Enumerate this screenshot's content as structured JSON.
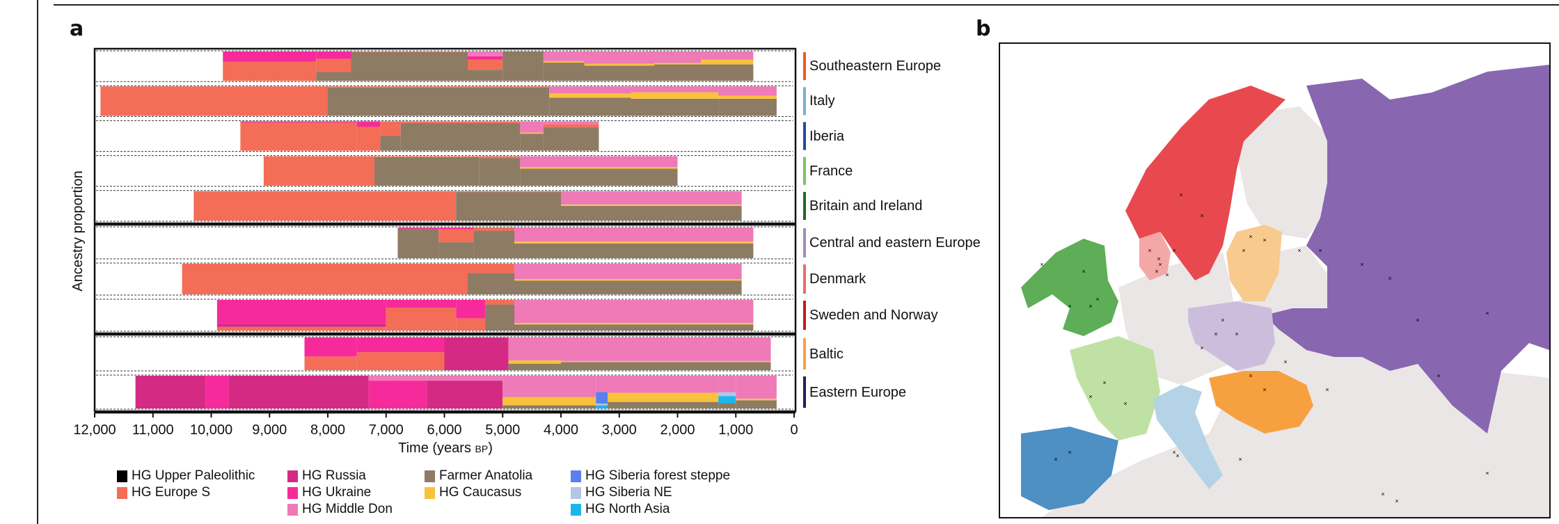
{
  "panels": {
    "a_label": "a",
    "b_label": "b"
  },
  "chart_data": [
    {
      "type": "area",
      "title": "",
      "xlabel": "Time (years BP)",
      "xlabel_main": "Time (years ",
      "xlabel_sc": "BP",
      "xlabel_close": ")",
      "ylabel": "Ancestry proportion",
      "xlim": [
        12000,
        0
      ],
      "ylim": [
        0,
        1
      ],
      "x_ticks": [
        12000,
        11000,
        10000,
        9000,
        8000,
        7000,
        6000,
        5000,
        4000,
        3000,
        2000,
        1000,
        0
      ],
      "x_tick_labels": [
        "12,000",
        "11,000",
        "10,000",
        "9,000",
        "8,000",
        "7,000",
        "6,000",
        "5,000",
        "4,000",
        "3,000",
        "2,000",
        "1,000",
        "0"
      ],
      "grid": false,
      "legend_position": "bottom",
      "components": [
        {
          "name": "HG Upper Paleolithic",
          "color": "#000000"
        },
        {
          "name": "HG Europe S",
          "color": "#F46D56"
        },
        {
          "name": "HG Russia",
          "color": "#D42A84"
        },
        {
          "name": "HG Ukraine",
          "color": "#F72A9C"
        },
        {
          "name": "HG Middle Don",
          "color": "#EE7AB8"
        },
        {
          "name": "Farmer Anatolia",
          "color": "#8E7B63"
        },
        {
          "name": "HG Caucasus",
          "color": "#F9C23C"
        },
        {
          "name": "HG Siberia forest steppe",
          "color": "#5B7FF0"
        },
        {
          "name": "HG Siberia NE",
          "color": "#B3C6E4"
        },
        {
          "name": "HG North Asia",
          "color": "#1DB6EC"
        }
      ],
      "groups": [
        {
          "regions": [
            {
              "name": "Southeastern Europe",
              "color": "#F25A1C",
              "segments": [
                {
                  "from": 9800,
                  "to": 8200,
                  "p": {
                    "HG Europe S": 0.65,
                    "HG Ukraine": 0.35
                  }
                },
                {
                  "from": 8200,
                  "to": 7600,
                  "p": {
                    "HG Europe S": 0.45,
                    "Farmer Anatolia": 0.3,
                    "HG Ukraine": 0.25
                  }
                },
                {
                  "from": 7600,
                  "to": 5600,
                  "p": {
                    "Farmer Anatolia": 0.98,
                    "HG Europe S": 0.02
                  }
                },
                {
                  "from": 5600,
                  "to": 5000,
                  "p": {
                    "Farmer Anatolia": 0.38,
                    "HG Europe S": 0.34,
                    "HG Ukraine": 0.12,
                    "HG Middle Don": 0.16
                  }
                },
                {
                  "from": 5000,
                  "to": 4300,
                  "p": {
                    "Farmer Anatolia": 1.0
                  }
                },
                {
                  "from": 4300,
                  "to": 3600,
                  "p": {
                    "Farmer Anatolia": 0.62,
                    "HG Caucasus": 0.05,
                    "HG Middle Don": 0.33
                  }
                },
                {
                  "from": 3600,
                  "to": 2400,
                  "p": {
                    "Farmer Anatolia": 0.52,
                    "HG Caucasus": 0.06,
                    "HG Middle Don": 0.42
                  }
                },
                {
                  "from": 2400,
                  "to": 1600,
                  "p": {
                    "Farmer Anatolia": 0.56,
                    "HG Caucasus": 0.05,
                    "HG Middle Don": 0.39
                  }
                },
                {
                  "from": 1600,
                  "to": 700,
                  "p": {
                    "Farmer Anatolia": 0.56,
                    "HG Caucasus": 0.16,
                    "HG Middle Don": 0.28
                  }
                }
              ]
            },
            {
              "name": "Italy",
              "color": "#7BAFD4",
              "segments": [
                {
                  "from": 11900,
                  "to": 8000,
                  "p": {
                    "HG Europe S": 1.0
                  }
                },
                {
                  "from": 8000,
                  "to": 4200,
                  "p": {
                    "Farmer Anatolia": 0.96,
                    "HG Europe S": 0.04
                  }
                },
                {
                  "from": 4200,
                  "to": 2800,
                  "p": {
                    "Farmer Anatolia": 0.62,
                    "HG Caucasus": 0.14,
                    "HG Middle Don": 0.24
                  }
                },
                {
                  "from": 2800,
                  "to": 1300,
                  "p": {
                    "Farmer Anatolia": 0.58,
                    "HG Caucasus": 0.22,
                    "HG Middle Don": 0.2
                  }
                },
                {
                  "from": 1300,
                  "to": 300,
                  "p": {
                    "Farmer Anatolia": 0.58,
                    "HG Caucasus": 0.1,
                    "HG Middle Don": 0.32
                  }
                }
              ]
            },
            {
              "name": "Iberia",
              "color": "#1F4E9A",
              "segments": [
                {
                  "from": 9500,
                  "to": 7500,
                  "p": {
                    "HG Europe S": 0.96,
                    "HG Ukraine": 0.04
                  }
                },
                {
                  "from": 7500,
                  "to": 7100,
                  "p": {
                    "HG Europe S": 0.82,
                    "HG Ukraine": 0.18
                  }
                },
                {
                  "from": 7100,
                  "to": 6750,
                  "p": {
                    "HG Europe S": 0.5,
                    "Farmer Anatolia": 0.5
                  }
                },
                {
                  "from": 6750,
                  "to": 4700,
                  "p": {
                    "Farmer Anatolia": 0.94,
                    "HG Europe S": 0.06
                  }
                },
                {
                  "from": 4700,
                  "to": 4300,
                  "p": {
                    "Farmer Anatolia": 0.58,
                    "HG Caucasus": 0.04,
                    "HG Middle Don": 0.38
                  }
                },
                {
                  "from": 4300,
                  "to": 3350,
                  "p": {
                    "Farmer Anatolia": 0.8,
                    "HG Europe S": 0.1,
                    "HG Middle Don": 0.1
                  }
                }
              ]
            },
            {
              "name": "France",
              "color": "#7CC462",
              "segments": [
                {
                  "from": 9100,
                  "to": 7200,
                  "p": {
                    "HG Europe S": 1.0
                  }
                },
                {
                  "from": 7200,
                  "to": 5400,
                  "p": {
                    "Farmer Anatolia": 0.97,
                    "HG Europe S": 0.03
                  }
                },
                {
                  "from": 5400,
                  "to": 4700,
                  "p": {
                    "Farmer Anatolia": 0.94,
                    "HG Europe S": 0.06
                  }
                },
                {
                  "from": 4700,
                  "to": 2000,
                  "p": {
                    "Farmer Anatolia": 0.58,
                    "HG Caucasus": 0.05,
                    "HG Middle Don": 0.37
                  }
                }
              ]
            },
            {
              "name": "Britain and Ireland",
              "color": "#1E6B23",
              "segments": [
                {
                  "from": 10300,
                  "to": 5800,
                  "p": {
                    "HG Europe S": 1.0
                  }
                },
                {
                  "from": 5800,
                  "to": 4000,
                  "p": {
                    "Farmer Anatolia": 0.97,
                    "HG Europe S": 0.03
                  }
                },
                {
                  "from": 4000,
                  "to": 900,
                  "p": {
                    "Farmer Anatolia": 0.5,
                    "HG Caucasus": 0.05,
                    "HG Middle Don": 0.45
                  }
                }
              ]
            }
          ]
        },
        {
          "regions": [
            {
              "name": "Central and eastern Europe",
              "color": "#A08BC0",
              "segments": [
                {
                  "from": 6800,
                  "to": 6100,
                  "p": {
                    "Farmer Anatolia": 0.96,
                    "HG Ukraine": 0.04
                  }
                },
                {
                  "from": 6100,
                  "to": 5500,
                  "p": {
                    "Farmer Anatolia": 0.52,
                    "HG Europe S": 0.43,
                    "HG Ukraine": 0.05
                  }
                },
                {
                  "from": 5500,
                  "to": 4800,
                  "p": {
                    "Farmer Anatolia": 0.9,
                    "HG Europe S": 0.1
                  }
                },
                {
                  "from": 4800,
                  "to": 700,
                  "p": {
                    "Farmer Anatolia": 0.48,
                    "HG Caucasus": 0.06,
                    "HG Middle Don": 0.46
                  }
                }
              ]
            },
            {
              "name": "Denmark",
              "color": "#EE6B6B",
              "segments": [
                {
                  "from": 10500,
                  "to": 5600,
                  "p": {
                    "HG Europe S": 1.0
                  }
                },
                {
                  "from": 5600,
                  "to": 4800,
                  "p": {
                    "Farmer Anatolia": 0.7,
                    "HG Europe S": 0.3
                  }
                },
                {
                  "from": 4800,
                  "to": 900,
                  "p": {
                    "Farmer Anatolia": 0.45,
                    "HG Caucasus": 0.05,
                    "HG Middle Don": 0.5
                  }
                }
              ]
            },
            {
              "name": "Sweden and Norway",
              "color": "#C41A1A",
              "segments": [
                {
                  "from": 9900,
                  "to": 7000,
                  "p": {
                    "HG Europe S": 0.12,
                    "HG Ukraine": 0.78,
                    "HG Russia": 0.1
                  }
                },
                {
                  "from": 7000,
                  "to": 5800,
                  "p": {
                    "HG Europe S": 0.75,
                    "HG Ukraine": 0.25
                  }
                },
                {
                  "from": 5800,
                  "to": 5300,
                  "p": {
                    "HG Europe S": 0.4,
                    "HG Ukraine": 0.6
                  }
                },
                {
                  "from": 5300,
                  "to": 4800,
                  "p": {
                    "Farmer Anatolia": 0.85,
                    "HG Europe S": 0.15
                  }
                },
                {
                  "from": 4800,
                  "to": 700,
                  "p": {
                    "Farmer Anatolia": 0.2,
                    "HG Caucasus": 0.05,
                    "HG Middle Don": 0.75
                  }
                }
              ]
            }
          ]
        },
        {
          "regions": [
            {
              "name": "Baltic",
              "color": "#F7A040",
              "segments": [
                {
                  "from": 8400,
                  "to": 7500,
                  "p": {
                    "HG Europe S": 0.42,
                    "HG Ukraine": 0.58
                  }
                },
                {
                  "from": 7500,
                  "to": 6000,
                  "p": {
                    "HG Europe S": 0.55,
                    "HG Ukraine": 0.45
                  }
                },
                {
                  "from": 6000,
                  "to": 4900,
                  "p": {
                    "HG Russia": 1.0
                  }
                },
                {
                  "from": 4900,
                  "to": 4000,
                  "p": {
                    "Farmer Anatolia": 0.2,
                    "HG Caucasus": 0.1,
                    "HG Middle Don": 0.7
                  }
                },
                {
                  "from": 4000,
                  "to": 400,
                  "p": {
                    "Farmer Anatolia": 0.25,
                    "HG Caucasus": 0.03,
                    "HG Middle Don": 0.72
                  }
                }
              ]
            },
            {
              "name": "Eastern Europe",
              "color": "#2B1A5E",
              "segments": [
                {
                  "from": 11300,
                  "to": 10100,
                  "p": {
                    "HG Russia": 1.0
                  }
                },
                {
                  "from": 10100,
                  "to": 9700,
                  "p": {
                    "HG Ukraine": 1.0
                  }
                },
                {
                  "from": 9700,
                  "to": 7300,
                  "p": {
                    "HG Russia": 1.0
                  }
                },
                {
                  "from": 7300,
                  "to": 6300,
                  "p": {
                    "HG Ukraine": 0.85,
                    "HG Middle Don": 0.15
                  }
                },
                {
                  "from": 6300,
                  "to": 5000,
                  "p": {
                    "HG Russia": 0.85,
                    "HG Middle Don": 0.15
                  }
                },
                {
                  "from": 5000,
                  "to": 3400,
                  "p": {
                    "Farmer Anatolia": 0.1,
                    "HG Caucasus": 0.25,
                    "HG Middle Don": 0.65
                  }
                },
                {
                  "from": 3400,
                  "to": 3200,
                  "p": {
                    "HG North Asia": 0.1,
                    "HG Siberia NE": 0.05,
                    "HG Siberia forest steppe": 0.35,
                    "HG Middle Don": 0.5
                  }
                },
                {
                  "from": 3200,
                  "to": 1300,
                  "p": {
                    "Farmer Anatolia": 0.2,
                    "HG Caucasus": 0.28,
                    "HG Middle Don": 0.52
                  }
                },
                {
                  "from": 1300,
                  "to": 1000,
                  "p": {
                    "HG North Asia": 0.22,
                    "HG Siberia NE": 0.12,
                    "Farmer Anatolia": 0.16,
                    "HG Middle Don": 0.5
                  }
                },
                {
                  "from": 1000,
                  "to": 300,
                  "p": {
                    "Farmer Anatolia": 0.25,
                    "HG Caucasus": 0.05,
                    "HG Middle Don": 0.7
                  }
                }
              ]
            }
          ]
        }
      ]
    },
    {
      "type": "map",
      "title": "",
      "regions": [
        {
          "name": "Southeastern Europe",
          "color": "#F7A040"
        },
        {
          "name": "Italy",
          "color": "#B4D3E6"
        },
        {
          "name": "Iberia",
          "color": "#4E8FC4"
        },
        {
          "name": "France",
          "color": "#BFE2A4"
        },
        {
          "name": "Britain and Ireland",
          "color": "#5DAE57"
        },
        {
          "name": "Central and eastern Europe",
          "color": "#CDBDDD"
        },
        {
          "name": "Denmark",
          "color": "#F4A7A7"
        },
        {
          "name": "Sweden and Norway",
          "color": "#E8494F"
        },
        {
          "name": "Baltic",
          "color": "#F8CA8E"
        },
        {
          "name": "Eastern Europe",
          "color": "#8866B0"
        },
        {
          "name": "Other land",
          "color": "#EBE6E6"
        }
      ],
      "marker": "x"
    }
  ]
}
